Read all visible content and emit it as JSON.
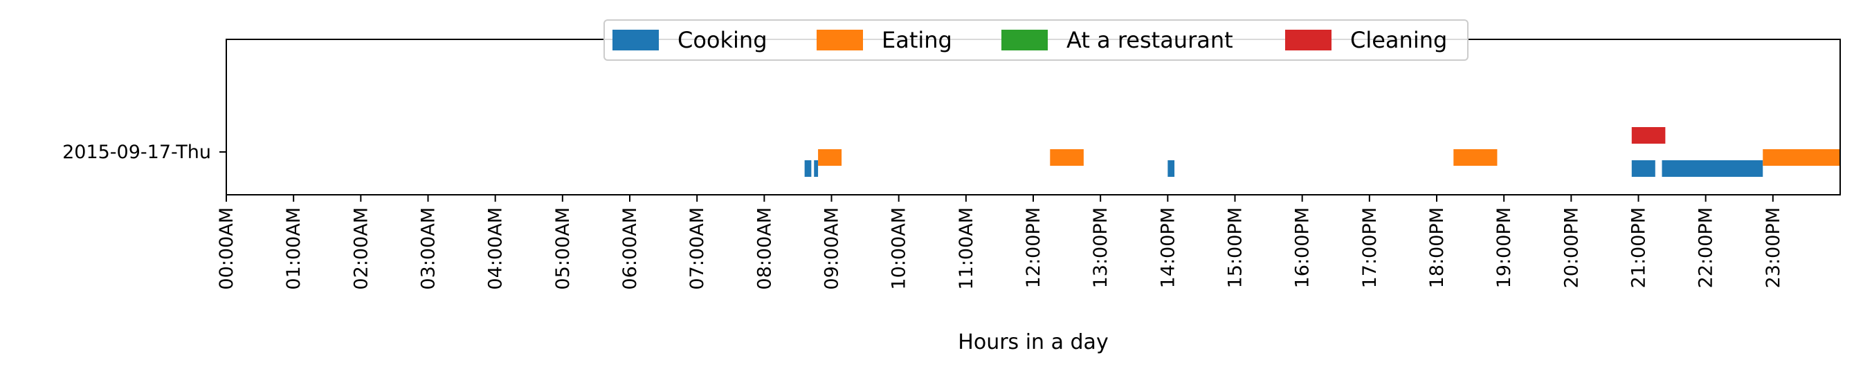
{
  "chart_data": {
    "type": "gantt",
    "title": "",
    "xlabel": "Hours in a day",
    "ylabel": "",
    "xlim": [
      0,
      24
    ],
    "grid": false,
    "legend": {
      "placement": "top-center",
      "entries": [
        "Cooking",
        "Eating",
        "At a restaurant",
        "Cleaning"
      ]
    },
    "categories": [
      "2015-09-17-Thu"
    ],
    "x_tick_labels": [
      "00:00AM",
      "01:00AM",
      "02:00AM",
      "03:00AM",
      "04:00AM",
      "05:00AM",
      "06:00AM",
      "07:00AM",
      "08:00AM",
      "09:00AM",
      "10:00AM",
      "11:00AM",
      "12:00PM",
      "13:00PM",
      "14:00PM",
      "15:00PM",
      "16:00PM",
      "17:00PM",
      "18:00PM",
      "19:00PM",
      "20:00PM",
      "21:00PM",
      "22:00PM",
      "23:00PM"
    ],
    "series": [
      {
        "name": "Cooking",
        "color": "#1f77b4",
        "segments": [
          {
            "start": 8.6,
            "end": 8.7
          },
          {
            "start": 8.74,
            "end": 8.8
          },
          {
            "start": 14.0,
            "end": 14.1
          },
          {
            "start": 20.9,
            "end": 21.25
          },
          {
            "start": 21.35,
            "end": 22.85
          }
        ]
      },
      {
        "name": "Eating",
        "color": "#ff7f0e",
        "segments": [
          {
            "start": 8.8,
            "end": 9.15
          },
          {
            "start": 12.25,
            "end": 12.75
          },
          {
            "start": 18.25,
            "end": 18.9
          },
          {
            "start": 22.85,
            "end": 24.0
          }
        ]
      },
      {
        "name": "At a restaurant",
        "color": "#2ca02c",
        "segments": []
      },
      {
        "name": "Cleaning",
        "color": "#d62728",
        "segments": [
          {
            "start": 20.9,
            "end": 21.4
          }
        ]
      }
    ]
  }
}
